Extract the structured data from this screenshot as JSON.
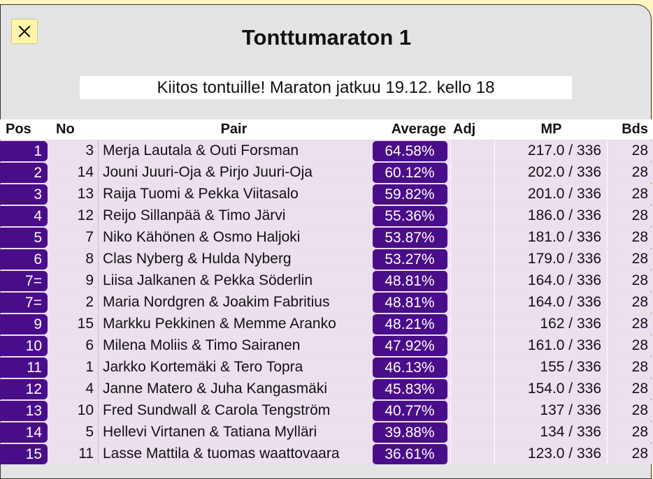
{
  "title": "Tonttumaraton 1",
  "notice": "Kiitos tontuille! Maraton jatkuu 19.12. kello 18",
  "close_icon": "close-icon",
  "colors": {
    "accent": "#4a0d8a",
    "row_bg": "#ece0ee",
    "page_bg": "#fff6c2",
    "panel_bg": "#e3e3e3"
  },
  "headers": {
    "pos": "Pos",
    "no": "No",
    "pair": "Pair",
    "average": "Average",
    "adj": "Adj",
    "mp": "MP",
    "bds": "Bds"
  },
  "rows": [
    {
      "pos": "1",
      "no": "3",
      "pair": "Merja Lautala & Outi Forsman",
      "average": "64.58%",
      "adj": "",
      "mp": "217.0 / 336",
      "bds": "28"
    },
    {
      "pos": "2",
      "no": "14",
      "pair": "Jouni Juuri-Oja & Pirjo Juuri-Oja",
      "average": "60.12%",
      "adj": "",
      "mp": "202.0 / 336",
      "bds": "28"
    },
    {
      "pos": "3",
      "no": "13",
      "pair": "Raija Tuomi & Pekka Viitasalo",
      "average": "59.82%",
      "adj": "",
      "mp": "201.0 / 336",
      "bds": "28"
    },
    {
      "pos": "4",
      "no": "12",
      "pair": "Reijo Sillanpää & Timo Järvi",
      "average": "55.36%",
      "adj": "",
      "mp": "186.0 / 336",
      "bds": "28"
    },
    {
      "pos": "5",
      "no": "7",
      "pair": "Niko Kähönen & Osmo Haljoki",
      "average": "53.87%",
      "adj": "",
      "mp": "181.0 / 336",
      "bds": "28"
    },
    {
      "pos": "6",
      "no": "8",
      "pair": "Clas Nyberg & Hulda Nyberg",
      "average": "53.27%",
      "adj": "",
      "mp": "179.0 / 336",
      "bds": "28"
    },
    {
      "pos": "7=",
      "no": "9",
      "pair": "Liisa Jalkanen & Pekka Söderlin",
      "average": "48.81%",
      "adj": "",
      "mp": "164.0 / 336",
      "bds": "28"
    },
    {
      "pos": "7=",
      "no": "2",
      "pair": "Maria Nordgren & Joakim Fabritius",
      "average": "48.81%",
      "adj": "",
      "mp": "164.0 / 336",
      "bds": "28"
    },
    {
      "pos": "9",
      "no": "15",
      "pair": "Markku Pekkinen & Memme Aranko",
      "average": "48.21%",
      "adj": "",
      "mp": "162 / 336",
      "bds": "28"
    },
    {
      "pos": "10",
      "no": "6",
      "pair": "Milena Moliis & Timo Sairanen",
      "average": "47.92%",
      "adj": "",
      "mp": "161.0 / 336",
      "bds": "28"
    },
    {
      "pos": "11",
      "no": "1",
      "pair": "Jarkko Kortemäki & Tero Topra",
      "average": "46.13%",
      "adj": "",
      "mp": "155 / 336",
      "bds": "28"
    },
    {
      "pos": "12",
      "no": "4",
      "pair": "Janne Matero & Juha Kangasmäki",
      "average": "45.83%",
      "adj": "",
      "mp": "154.0 / 336",
      "bds": "28"
    },
    {
      "pos": "13",
      "no": "10",
      "pair": "Fred Sundwall & Carola Tengström",
      "average": "40.77%",
      "adj": "",
      "mp": "137 / 336",
      "bds": "28"
    },
    {
      "pos": "14",
      "no": "5",
      "pair": "Hellevi Virtanen & Tatiana Mylläri",
      "average": "39.88%",
      "adj": "",
      "mp": "134 / 336",
      "bds": "28"
    },
    {
      "pos": "15",
      "no": "11",
      "pair": "Lasse Mattila & tuomas waattovaara",
      "average": "36.61%",
      "adj": "",
      "mp": "123.0 / 336",
      "bds": "28"
    }
  ]
}
